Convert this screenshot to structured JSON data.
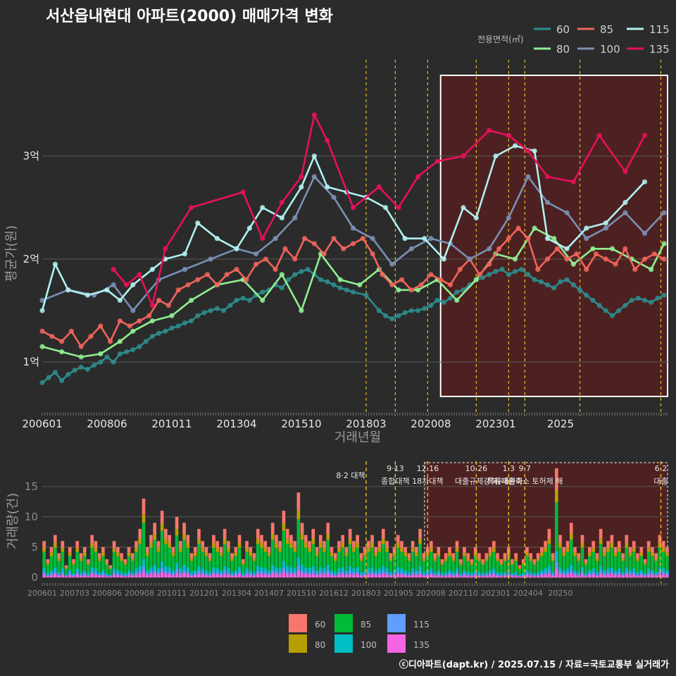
{
  "title": "서산읍내현대 아파트(2000) 매매가격 변화",
  "credit": "ⓒ디아파트(dapt.kr) / 2025.07.15 / 자료=국토교통부 실거래가",
  "colors": {
    "60": "#2e8b8b",
    "80": "#90ee90",
    "85": "#f0645a",
    "100": "#7a8fb5",
    "115": "#b0f0f0",
    "135": "#e8105a",
    "bar60": "#f8766d",
    "bar80": "#b79f00",
    "bar85": "#00ba38",
    "bar100": "#00bfc4",
    "bar115": "#619cff",
    "bar135": "#f564e3",
    "bg": "#2b2b2b",
    "event": "#e8c020",
    "highlight": "#5a1f1f"
  },
  "chart_data": [
    {
      "type": "line",
      "title": "서산읍내현대 아파트(2000) 매매가격 변화",
      "xlabel": "거래년월",
      "ylabel": "평균가(원)",
      "ylim": [
        0.55,
        3.9
      ],
      "xlim": [
        2006.4,
        2025.75
      ],
      "x_ticks": [
        {
          "x": 2006.4,
          "label": "200601"
        },
        {
          "x": 2008.4,
          "label": "200806"
        },
        {
          "x": 2010.4,
          "label": "201011"
        },
        {
          "x": 2012.4,
          "label": "201304"
        },
        {
          "x": 2014.4,
          "label": "201510"
        },
        {
          "x": 2016.4,
          "label": "201803"
        },
        {
          "x": 2018.4,
          "label": "202008"
        },
        {
          "x": 2020.4,
          "label": "202301"
        },
        {
          "x": 2022.4,
          "label": "2025"
        }
      ],
      "y_ticks": [
        {
          "y": 1,
          "label": "1억"
        },
        {
          "y": 2,
          "label": "2억"
        },
        {
          "y": 3,
          "label": "3억"
        }
      ],
      "legend_title": "전용면적(㎡)",
      "legend_placement": "top-right",
      "grid": true,
      "highlight_range": [
        2018.2,
        2025.75
      ],
      "event_lines": [
        2016.4,
        2017.3,
        2018.3,
        2019.8,
        2020.8,
        2021.3,
        2023.0,
        2025.5
      ],
      "series": [
        {
          "name": "60",
          "x": [
            2006.4,
            2006.6,
            2006.8,
            2007.0,
            2007.2,
            2007.4,
            2007.6,
            2007.8,
            2008.0,
            2008.2,
            2008.4,
            2008.6,
            2008.8,
            2009.0,
            2009.2,
            2009.4,
            2009.6,
            2009.8,
            2010.0,
            2010.2,
            2010.4,
            2010.6,
            2010.8,
            2011.0,
            2011.2,
            2011.4,
            2011.6,
            2011.8,
            2012.0,
            2012.2,
            2012.4,
            2012.6,
            2012.8,
            2013.0,
            2013.2,
            2013.4,
            2013.6,
            2013.8,
            2014.0,
            2014.2,
            2014.4,
            2014.6,
            2014.8,
            2015.0,
            2015.2,
            2015.4,
            2015.6,
            2015.8,
            2016.0,
            2016.4,
            2016.8,
            2017.0,
            2017.2,
            2017.4,
            2017.6,
            2017.8,
            2018.0,
            2018.2,
            2018.4,
            2018.6,
            2018.8,
            2019.0,
            2019.2,
            2019.4,
            2019.6,
            2019.8,
            2020.0,
            2020.2,
            2020.4,
            2020.6,
            2020.8,
            2021.0,
            2021.2,
            2021.4,
            2021.6,
            2021.8,
            2022.0,
            2022.2,
            2022.4,
            2022.6,
            2022.8,
            2023.0,
            2023.2,
            2023.4,
            2023.6,
            2023.8,
            2024.0,
            2024.2,
            2024.4,
            2024.6,
            2024.8,
            2025.0,
            2025.2,
            2025.4,
            2025.6
          ],
          "values": [
            0.8,
            0.85,
            0.9,
            0.82,
            0.88,
            0.92,
            0.95,
            0.93,
            0.97,
            1.0,
            1.05,
            1.0,
            1.08,
            1.1,
            1.12,
            1.15,
            1.2,
            1.25,
            1.28,
            1.3,
            1.33,
            1.35,
            1.38,
            1.4,
            1.45,
            1.48,
            1.5,
            1.52,
            1.5,
            1.55,
            1.6,
            1.62,
            1.6,
            1.65,
            1.68,
            1.7,
            1.75,
            1.72,
            1.8,
            1.85,
            1.88,
            1.9,
            1.85,
            1.8,
            1.78,
            1.75,
            1.72,
            1.7,
            1.68,
            1.65,
            1.5,
            1.45,
            1.42,
            1.45,
            1.48,
            1.5,
            1.5,
            1.52,
            1.55,
            1.6,
            1.58,
            1.62,
            1.68,
            1.7,
            1.75,
            1.8,
            1.82,
            1.85,
            1.88,
            1.9,
            1.85,
            1.88,
            1.9,
            1.85,
            1.8,
            1.78,
            1.75,
            1.72,
            1.78,
            1.8,
            1.75,
            1.7,
            1.65,
            1.6,
            1.55,
            1.5,
            1.45,
            1.5,
            1.55,
            1.6,
            1.62,
            1.6,
            1.58,
            1.62,
            1.65
          ]
        },
        {
          "name": "80",
          "x": [
            2006.4,
            2007.0,
            2007.6,
            2008.2,
            2008.8,
            2009.2,
            2009.8,
            2010.4,
            2011.0,
            2011.8,
            2012.6,
            2013.2,
            2013.8,
            2014.4,
            2015.0,
            2015.6,
            2016.2,
            2016.8,
            2017.4,
            2018.0,
            2018.6,
            2019.2,
            2019.8,
            2020.4,
            2021.0,
            2021.6,
            2022.2,
            2022.8,
            2023.4,
            2024.0,
            2024.6,
            2025.2,
            2025.6
          ],
          "values": [
            1.15,
            1.1,
            1.05,
            1.08,
            1.2,
            1.3,
            1.4,
            1.45,
            1.6,
            1.75,
            1.8,
            1.6,
            1.85,
            1.5,
            2.05,
            1.8,
            1.75,
            1.9,
            1.7,
            1.7,
            1.8,
            1.6,
            1.8,
            2.05,
            2.0,
            2.3,
            2.2,
            1.95,
            2.1,
            2.1,
            2.0,
            1.9,
            2.15
          ]
        },
        {
          "name": "85",
          "x": [
            2006.4,
            2006.7,
            2007.0,
            2007.3,
            2007.6,
            2007.9,
            2008.2,
            2008.5,
            2008.8,
            2009.1,
            2009.4,
            2009.7,
            2010.0,
            2010.3,
            2010.6,
            2010.9,
            2011.2,
            2011.5,
            2011.8,
            2012.1,
            2012.4,
            2012.7,
            2013.0,
            2013.3,
            2013.6,
            2013.9,
            2014.2,
            2014.5,
            2014.8,
            2015.1,
            2015.4,
            2015.7,
            2016.0,
            2016.3,
            2016.6,
            2016.9,
            2017.2,
            2017.5,
            2017.8,
            2018.1,
            2018.4,
            2018.7,
            2019.0,
            2019.3,
            2019.6,
            2019.9,
            2020.2,
            2020.5,
            2020.8,
            2021.1,
            2021.4,
            2021.7,
            2022.0,
            2022.3,
            2022.6,
            2022.9,
            2023.2,
            2023.5,
            2023.8,
            2024.1,
            2024.4,
            2024.7,
            2025.0,
            2025.3,
            2025.6
          ],
          "values": [
            1.3,
            1.25,
            1.2,
            1.3,
            1.15,
            1.25,
            1.35,
            1.2,
            1.4,
            1.35,
            1.4,
            1.45,
            1.6,
            1.55,
            1.7,
            1.75,
            1.8,
            1.85,
            1.75,
            1.85,
            1.9,
            1.8,
            1.95,
            2.0,
            1.9,
            2.1,
            2.0,
            2.2,
            2.15,
            2.05,
            2.2,
            2.1,
            2.15,
            2.2,
            2.05,
            1.85,
            1.75,
            1.8,
            1.7,
            1.75,
            1.85,
            1.8,
            1.75,
            1.9,
            2.0,
            1.85,
            1.95,
            2.1,
            2.2,
            2.3,
            2.2,
            1.9,
            2.0,
            2.1,
            2.0,
            2.05,
            1.9,
            2.05,
            2.0,
            1.95,
            2.1,
            1.9,
            2.0,
            2.05,
            2.0
          ]
        },
        {
          "name": "100",
          "x": [
            2006.4,
            2007.2,
            2008.0,
            2008.6,
            2009.2,
            2010.0,
            2010.8,
            2011.6,
            2012.4,
            2013.0,
            2013.6,
            2014.2,
            2014.8,
            2015.4,
            2016.0,
            2016.6,
            2017.2,
            2017.8,
            2018.4,
            2019.0,
            2019.6,
            2020.2,
            2020.8,
            2021.4,
            2022.0,
            2022.6,
            2023.2,
            2023.8,
            2024.4,
            2025.0,
            2025.6
          ],
          "values": [
            1.6,
            1.7,
            1.65,
            1.75,
            1.5,
            1.8,
            1.9,
            2.0,
            2.1,
            2.05,
            2.2,
            2.4,
            2.8,
            2.6,
            2.3,
            2.2,
            1.95,
            2.1,
            2.2,
            2.15,
            2.0,
            2.1,
            2.4,
            2.8,
            2.55,
            2.45,
            2.2,
            2.3,
            2.45,
            2.25,
            2.45
          ]
        },
        {
          "name": "115",
          "x": [
            2006.4,
            2006.8,
            2007.2,
            2007.8,
            2008.4,
            2008.8,
            2009.2,
            2009.8,
            2010.2,
            2010.8,
            2011.2,
            2011.8,
            2012.4,
            2012.8,
            2013.2,
            2013.8,
            2014.4,
            2014.8,
            2015.2,
            2015.8,
            2016.4,
            2017.0,
            2017.6,
            2018.2,
            2018.8,
            2019.4,
            2019.8,
            2020.4,
            2021.0,
            2021.6,
            2022.0,
            2022.6,
            2023.2,
            2023.8,
            2024.4,
            2025.0
          ],
          "values": [
            1.5,
            1.95,
            1.7,
            1.65,
            1.7,
            1.6,
            1.75,
            1.9,
            2.0,
            2.05,
            2.35,
            2.2,
            2.1,
            2.3,
            2.5,
            2.4,
            2.7,
            3.0,
            2.7,
            2.65,
            2.6,
            2.5,
            2.2,
            2.2,
            2.0,
            2.5,
            2.4,
            3.0,
            3.1,
            3.05,
            2.2,
            2.1,
            2.3,
            2.35,
            2.55,
            2.75
          ]
        },
        {
          "name": "135",
          "x": [
            2008.6,
            2009.0,
            2009.4,
            2009.8,
            2010.2,
            2011.0,
            2012.6,
            2013.2,
            2013.8,
            2014.4,
            2014.8,
            2015.2,
            2016.0,
            2016.8,
            2017.4,
            2018.0,
            2018.6,
            2019.4,
            2020.2,
            2020.8,
            2021.4,
            2022.0,
            2022.8,
            2023.6,
            2024.4,
            2025.0
          ],
          "values": [
            1.9,
            1.75,
            1.85,
            1.55,
            2.1,
            2.5,
            2.65,
            2.2,
            2.55,
            2.8,
            3.4,
            3.15,
            2.5,
            2.7,
            2.5,
            2.8,
            2.95,
            3.0,
            3.25,
            3.2,
            3.05,
            2.8,
            2.75,
            3.2,
            2.85,
            3.2
          ]
        }
      ]
    },
    {
      "type": "bar",
      "title": "",
      "ylabel": "거래량(건)",
      "xlim": [
        2006.4,
        2025.75
      ],
      "ylim": [
        0,
        18
      ],
      "y_ticks": [
        {
          "y": 0,
          "label": "0"
        },
        {
          "y": 5,
          "label": "5"
        },
        {
          "y": 10,
          "label": "10"
        },
        {
          "y": 15,
          "label": "15"
        }
      ],
      "x_ticks": [
        {
          "x": 2006.4,
          "label": "200601"
        },
        {
          "x": 2007.4,
          "label": "200703"
        },
        {
          "x": 2008.4,
          "label": "200806"
        },
        {
          "x": 2009.4,
          "label": "200908"
        },
        {
          "x": 2010.4,
          "label": "201011"
        },
        {
          "x": 2011.4,
          "label": "201201"
        },
        {
          "x": 2012.4,
          "label": "201304"
        },
        {
          "x": 2013.4,
          "label": "201407"
        },
        {
          "x": 2014.4,
          "label": "201510"
        },
        {
          "x": 2015.4,
          "label": "201612"
        },
        {
          "x": 2016.4,
          "label": "201803"
        },
        {
          "x": 2017.4,
          "label": "201905"
        },
        {
          "x": 2018.4,
          "label": "202008"
        },
        {
          "x": 2019.4,
          "label": "202110"
        },
        {
          "x": 2020.4,
          "label": "202301"
        },
        {
          "x": 2021.4,
          "label": "202404"
        },
        {
          "x": 2022.4,
          "label": "20250"
        }
      ],
      "legend_placement": "bottom",
      "highlight_range": [
        2018.2,
        2025.75
      ],
      "events": [
        {
          "x": 2016.4,
          "label": "8·2 대책",
          "sub": ""
        },
        {
          "x": 2017.3,
          "label": "9·13",
          "sub": "종합대책"
        },
        {
          "x": 2018.3,
          "label": "12·16",
          "sub": "18차대책"
        },
        {
          "x": 2019.8,
          "label": "10·26",
          "sub": "대출규제강화"
        },
        {
          "x": 2020.8,
          "label": "1·3",
          "sub": "규제완화"
        },
        {
          "x": 2021.3,
          "label": "9·7",
          "sub": "특례대출축소 토허제 해"
        },
        {
          "x": 2025.5,
          "label": "6·2",
          "sub": "대출"
        }
      ],
      "series_names": [
        "60",
        "80",
        "85",
        "100",
        "115",
        "135"
      ],
      "bars_total": [
        6,
        3,
        5,
        7,
        4,
        6,
        2,
        5,
        3,
        6,
        4,
        5,
        3,
        7,
        6,
        4,
        5,
        3,
        2,
        6,
        5,
        4,
        3,
        5,
        4,
        6,
        8,
        13,
        5,
        7,
        9,
        6,
        11,
        8,
        7,
        5,
        10,
        6,
        9,
        7,
        4,
        5,
        8,
        6,
        5,
        4,
        7,
        6,
        5,
        8,
        6,
        4,
        5,
        7,
        3,
        6,
        5,
        4,
        8,
        7,
        6,
        5,
        9,
        7,
        6,
        11,
        8,
        7,
        6,
        14,
        9,
        7,
        6,
        8,
        5,
        7,
        6,
        9,
        5,
        4,
        6,
        7,
        5,
        8,
        6,
        7,
        4,
        5,
        6,
        7,
        5,
        6,
        8,
        6,
        4,
        5,
        7,
        6,
        5,
        4,
        6,
        5,
        8,
        4,
        5,
        6,
        4,
        5,
        3,
        4,
        5,
        4,
        6,
        3,
        5,
        4,
        3,
        5,
        4,
        3,
        4,
        5,
        6,
        4,
        3,
        4,
        5,
        3,
        4,
        2,
        3,
        5,
        4,
        3,
        4,
        5,
        6,
        8,
        4,
        18,
        7,
        5,
        6,
        9,
        5,
        4,
        7,
        3,
        5,
        6,
        4,
        8,
        5,
        6,
        7,
        5,
        6,
        4,
        7,
        5,
        6,
        4,
        5,
        3,
        6,
        5,
        4,
        7,
        6,
        5
      ]
    }
  ]
}
